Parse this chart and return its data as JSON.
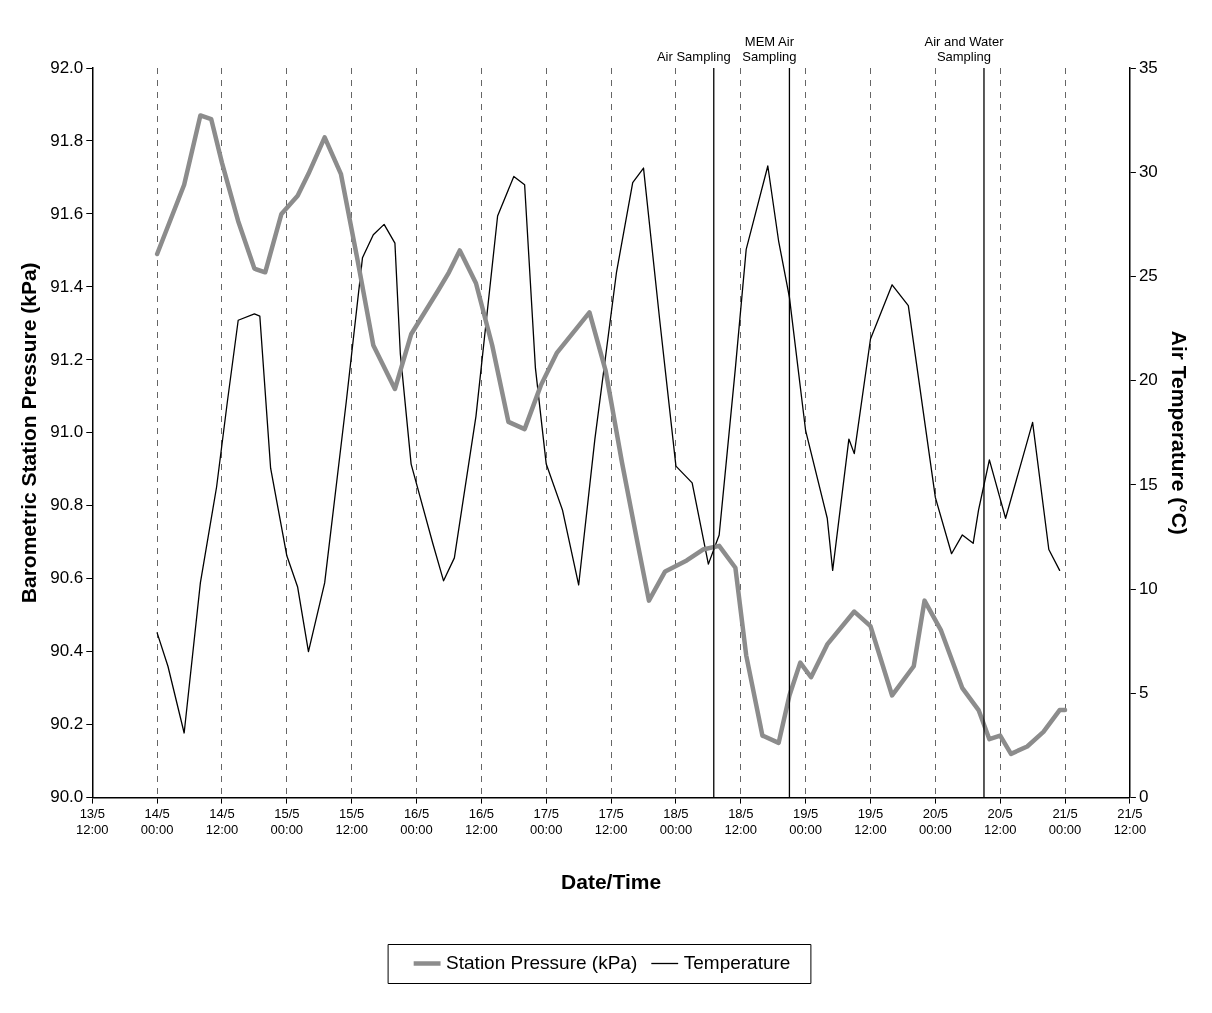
{
  "chart_data": {
    "type": "line",
    "xlabel": "Date/Time",
    "ylabel": "Barometric Station Pressure (kPa)",
    "y2label": "Air Temperature (°C)",
    "xlim": [
      "--05-13T12:00",
      "--05-21T12:00"
    ],
    "xticks": [
      {
        "value": "--05-13T12:00",
        "label": "13/5 12:00"
      },
      {
        "value": "--05-14T00:00",
        "label": "14/5 00:00"
      },
      {
        "value": "--05-14T12:00",
        "label": "14/5 12:00"
      },
      {
        "value": "--05-15T00:00",
        "label": "15/5 00:00"
      },
      {
        "value": "--05-15T12:00",
        "label": "15/5 12:00"
      },
      {
        "value": "--05-16T00:00",
        "label": "16/5 00:00"
      },
      {
        "value": "--05-16T12:00",
        "label": "16/5 12:00"
      },
      {
        "value": "--05-17T00:00",
        "label": "17/5 00:00"
      },
      {
        "value": "--05-17T12:00",
        "label": "17/5 12:00"
      },
      {
        "value": "--05-18T00:00",
        "label": "18/5 00:00"
      },
      {
        "value": "--05-18T12:00",
        "label": "18/5 12:00"
      },
      {
        "value": "--05-19T00:00",
        "label": "19/5 00:00"
      },
      {
        "value": "--05-19T12:00",
        "label": "19/5 12:00"
      },
      {
        "value": "--05-20T00:00",
        "label": "20/5 00:00"
      },
      {
        "value": "--05-20T12:00",
        "label": "20/5 12:00"
      },
      {
        "value": "--05-21T00:00",
        "label": "21/5 00:00"
      },
      {
        "value": "--05-21T12:00",
        "label": "21/5 12:00"
      }
    ],
    "ylim": [
      90,
      92
    ],
    "yticks": [
      {
        "value": 90,
        "label": "90.0"
      },
      {
        "value": 90.2,
        "label": "90.2"
      },
      {
        "value": 90.4,
        "label": "90.4"
      },
      {
        "value": 90.6,
        "label": "90.6"
      },
      {
        "value": 90.8,
        "label": "90.8"
      },
      {
        "value": 91,
        "label": "91.0"
      },
      {
        "value": 91.2,
        "label": "91.2"
      },
      {
        "value": 91.4,
        "label": "91.4"
      },
      {
        "value": 91.6,
        "label": "91.6"
      },
      {
        "value": 91.8,
        "label": "91.8"
      },
      {
        "value": 92,
        "label": "92.0"
      }
    ],
    "y2lim": [
      0,
      35
    ],
    "y2ticks": [
      0,
      5,
      10,
      15,
      20,
      25,
      30,
      35
    ],
    "grid": "x",
    "legend": "bottom",
    "marker": "none",
    "ref_lines": [
      {
        "axis": "x",
        "value": "--05-18T07:00",
        "label": "Air Sampling"
      },
      {
        "axis": "x",
        "value": "--05-18T21:00",
        "label": "MEM Air Sampling"
      },
      {
        "axis": "x",
        "value": "--05-20T09:00",
        "label": "Air and Water Sampling"
      }
    ],
    "series": [
      {
        "name": "Station Pressure (kPa)",
        "color": "#8c8c8c",
        "x": [
          "--05-14T00:00",
          "--05-14T05:00",
          "--05-14T08:00",
          "--05-14T10:00",
          "--05-14T12:00",
          "--05-14T15:00",
          "--05-14T18:00",
          "--05-14T20:00",
          "--05-14T23:00",
          "--05-15T02:00",
          "--05-15T04:00",
          "--05-15T07:00",
          "--05-15T10:00",
          "--05-15T13:00",
          "--05-15T16:00",
          "--05-15T20:00",
          "--05-15T23:00",
          "--05-16T04:00",
          "--05-16T06:00",
          "--05-16T08:00",
          "--05-16T11:00",
          "--05-16T14:00",
          "--05-16T17:00",
          "--05-16T20:00",
          "--05-16T23:00",
          "--05-17T02:00",
          "--05-17T08:00",
          "--05-17T11:00",
          "--05-17T14:00",
          "--05-17T17:00",
          "--05-17T19:00",
          "--05-17T22:00",
          "--05-18T02:00",
          "--05-18T05:00",
          "--05-18T08:00",
          "--05-18T11:00",
          "--05-18T13:00",
          "--05-18T16:00",
          "--05-18T19:00",
          "--05-18T21:00",
          "--05-18T23:00",
          "--05-19T01:00",
          "--05-19T04:00",
          "--05-19T09:00",
          "--05-19T12:00",
          "--05-19T16:00",
          "--05-19T20:00",
          "--05-19T22:00",
          "--05-20T01:00",
          "--05-20T05:00",
          "--05-20T08:00",
          "--05-20T10:00",
          "--05-20T12:00",
          "--05-20T14:00",
          "--05-20T17:00",
          "--05-20T20:00",
          "--05-20T23:00",
          "--05-21T00:00"
        ],
        "values": [
          91.49,
          91.68,
          91.87,
          91.86,
          91.74,
          91.58,
          91.45,
          91.44,
          91.6,
          91.65,
          91.71,
          91.81,
          91.71,
          91.48,
          91.24,
          91.12,
          91.27,
          91.39,
          91.44,
          91.5,
          91.41,
          91.24,
          91.03,
          91.01,
          91.13,
          91.22,
          91.33,
          91.17,
          90.92,
          90.69,
          90.54,
          90.62,
          90.65,
          90.68,
          90.69,
          90.63,
          90.39,
          90.17,
          90.15,
          90.28,
          90.37,
          90.33,
          90.42,
          90.51,
          90.47,
          90.28,
          90.36,
          90.54,
          90.46,
          90.3,
          90.24,
          90.16,
          90.17,
          90.12,
          90.14,
          90.18,
          90.24,
          90.24
        ]
      },
      {
        "name": "Temperature",
        "color": "#000000",
        "axis": "y2",
        "x": [
          "--05-14T00:00",
          "--05-14T02:00",
          "--05-14T05:00",
          "--05-14T08:00",
          "--05-14T11:00",
          "--05-14T13:00",
          "--05-14T15:00",
          "--05-14T18:00",
          "--05-14T19:00",
          "--05-14T21:00",
          "--05-15T00:00",
          "--05-15T02:00",
          "--05-15T04:00",
          "--05-15T07:00",
          "--05-15T11:00",
          "--05-15T14:00",
          "--05-15T16:00",
          "--05-15T18:00",
          "--05-15T20:00",
          "--05-15T21:00",
          "--05-15T23:00",
          "--05-16T03:00",
          "--05-16T05:00",
          "--05-16T07:00",
          "--05-16T11:00",
          "--05-16T15:00",
          "--05-16T18:00",
          "--05-16T20:00",
          "--05-16T22:00",
          "--05-17T00:00",
          "--05-17T03:00",
          "--05-17T06:00",
          "--05-17T09:00",
          "--05-17T13:00",
          "--05-17T16:00",
          "--05-17T18:00",
          "--05-17T21:00",
          "--05-18T00:00",
          "--05-18T03:00",
          "--05-18T06:00",
          "--05-18T08:00",
          "--05-18T11:00",
          "--05-18T13:00",
          "--05-18T17:00",
          "--05-18T19:00",
          "--05-18T21:00",
          "--05-19T00:00",
          "--05-19T04:00",
          "--05-19T05:00",
          "--05-19T08:00",
          "--05-19T09:00",
          "--05-19T12:00",
          "--05-19T16:00",
          "--05-19T19:00",
          "--05-20T00:00",
          "--05-20T03:00",
          "--05-20T05:00",
          "--05-20T07:00",
          "--05-20T08:00",
          "--05-20T10:00",
          "--05-20T13:00",
          "--05-20T18:00",
          "--05-20T21:00",
          "--05-20T23:00"
        ],
        "values": [
          7.9,
          6.3,
          3.1,
          10.3,
          14.9,
          19,
          22.9,
          23.2,
          23.1,
          15.8,
          11.6,
          10.1,
          7,
          10.3,
          19,
          25.9,
          27,
          27.5,
          26.6,
          21.3,
          16,
          12.2,
          10.4,
          11.5,
          18.3,
          27.9,
          29.8,
          29.4,
          20.6,
          16,
          13.8,
          10.2,
          17.2,
          25.2,
          29.5,
          30.2,
          22.9,
          15.9,
          15.1,
          11.2,
          12.6,
          20.6,
          26.3,
          30.3,
          26.7,
          24,
          17.6,
          13.4,
          10.9,
          17.2,
          16.5,
          22,
          24.6,
          23.6,
          14.4,
          11.7,
          12.6,
          12.2,
          13.8,
          16.2,
          13.4,
          18,
          11.9,
          10.9
        ]
      }
    ]
  }
}
